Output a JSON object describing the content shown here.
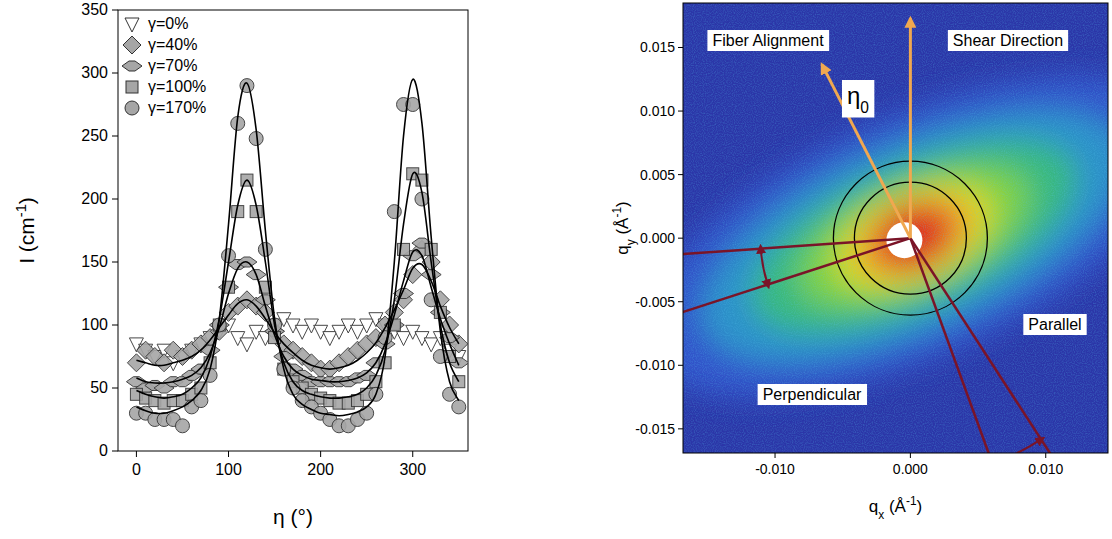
{
  "chart_data": [
    {
      "type": "scatter",
      "xlabel": [
        {
          "t": "η (°)"
        }
      ],
      "ylabel": [
        {
          "t": "I (cm"
        },
        {
          "t": "-1",
          "sup": true
        },
        {
          "t": ")"
        }
      ],
      "xlim": [
        -20,
        360
      ],
      "xticks": [
        0,
        100,
        200,
        300
      ],
      "ylim": [
        0,
        350
      ],
      "yticks": [
        0,
        50,
        100,
        150,
        200,
        250,
        300,
        350
      ],
      "legend": "top-left",
      "x": [
        0,
        10,
        20,
        30,
        40,
        50,
        60,
        70,
        80,
        90,
        100,
        110,
        120,
        130,
        140,
        150,
        160,
        170,
        180,
        190,
        200,
        210,
        220,
        230,
        240,
        250,
        260,
        270,
        280,
        290,
        300,
        310,
        320,
        330,
        340,
        350
      ],
      "series": [
        {
          "name": "γ=0%",
          "marker": "triangle-down",
          "color": "#ffffff",
          "values": [
            85,
            80,
            75,
            80,
            70,
            75,
            80,
            85,
            90,
            95,
            100,
            90,
            85,
            95,
            90,
            100,
            105,
            100,
            95,
            100,
            95,
            90,
            95,
            100,
            95,
            100,
            105,
            100,
            95,
            90,
            95,
            90,
            85,
            90,
            80,
            75
          ]
        },
        {
          "name": "γ=40%",
          "marker": "diamond",
          "color": "#a6a6a6",
          "values": [
            70,
            80,
            75,
            70,
            80,
            75,
            80,
            85,
            90,
            95,
            110,
            115,
            120,
            115,
            110,
            95,
            85,
            80,
            75,
            70,
            65,
            65,
            70,
            75,
            80,
            85,
            90,
            100,
            110,
            120,
            140,
            160,
            150,
            120,
            100,
            85
          ],
          "fit_values": [
            72,
            70,
            68,
            68,
            70,
            72,
            75,
            80,
            88,
            98,
            108,
            117,
            120,
            115,
            105,
            94,
            85,
            78,
            72,
            68,
            66,
            65,
            66,
            68,
            72,
            78,
            86,
            98,
            112,
            128,
            145,
            148,
            135,
            115,
            98,
            85
          ]
        },
        {
          "name": "γ=70%",
          "marker": "diamond-wide",
          "color": "#a6a6a6",
          "values": [
            55,
            50,
            52,
            50,
            55,
            55,
            60,
            65,
            80,
            100,
            130,
            148,
            150,
            140,
            120,
            95,
            75,
            65,
            60,
            55,
            55,
            55,
            55,
            55,
            58,
            60,
            70,
            85,
            100,
            125,
            155,
            165,
            140,
            110,
            90,
            70
          ],
          "fit_values": [
            58,
            55,
            54,
            54,
            55,
            57,
            60,
            66,
            78,
            98,
            125,
            145,
            150,
            140,
            115,
            92,
            75,
            65,
            60,
            57,
            56,
            55,
            55,
            56,
            58,
            62,
            70,
            85,
            108,
            135,
            158,
            155,
            130,
            105,
            85,
            68
          ]
        },
        {
          "name": "γ=100%",
          "marker": "square",
          "color": "#a6a6a6",
          "values": [
            45,
            42,
            40,
            38,
            40,
            40,
            45,
            50,
            70,
            100,
            130,
            190,
            215,
            190,
            130,
            90,
            65,
            55,
            50,
            45,
            42,
            40,
            38,
            38,
            40,
            45,
            55,
            70,
            100,
            160,
            220,
            215,
            160,
            110,
            75,
            55
          ],
          "fit_values": [
            48,
            45,
            43,
            42,
            43,
            45,
            50,
            58,
            75,
            105,
            150,
            195,
            215,
            195,
            150,
            100,
            70,
            55,
            48,
            45,
            43,
            42,
            42,
            43,
            45,
            50,
            60,
            80,
            120,
            180,
            220,
            205,
            150,
            100,
            70,
            55
          ]
        },
        {
          "name": "γ=170%",
          "marker": "circle",
          "color": "#a6a6a6",
          "values": [
            30,
            30,
            25,
            25,
            25,
            20,
            35,
            40,
            60,
            100,
            155,
            260,
            290,
            248,
            160,
            100,
            65,
            50,
            40,
            35,
            30,
            25,
            20,
            20,
            25,
            30,
            45,
            90,
            190,
            275,
            275,
            200,
            120,
            75,
            45,
            35
          ],
          "fit_values": [
            35,
            32,
            30,
            30,
            32,
            35,
            40,
            48,
            65,
            105,
            180,
            265,
            292,
            255,
            175,
            105,
            65,
            45,
            37,
            33,
            30,
            29,
            28,
            29,
            31,
            35,
            45,
            75,
            150,
            250,
            295,
            260,
            170,
            95,
            55,
            40
          ]
        }
      ]
    },
    {
      "type": "image",
      "xlabel": [
        {
          "t": "q"
        },
        {
          "t": "x",
          "sub": true
        },
        {
          "t": " (Å"
        },
        {
          "t": "-1",
          "sup": true
        },
        {
          "t": ")"
        }
      ],
      "ylabel": [
        {
          "t": "q"
        },
        {
          "t": "y",
          "sub": true
        },
        {
          "t": " (Å"
        },
        {
          "t": "-1",
          "sup": true
        },
        {
          "t": ")"
        }
      ],
      "xlim": [
        -0.0168,
        0.0146
      ],
      "xticks": [
        {
          "value": -0.01,
          "label": "-0.010"
        },
        {
          "value": 0,
          "label": "0.000"
        },
        {
          "value": 0.01,
          "label": "0.010"
        }
      ],
      "ylim": [
        -0.0169,
        0.0185
      ],
      "yticks": [
        {
          "value": -0.015,
          "label": "-0.015"
        },
        {
          "value": -0.01,
          "label": "-0.010"
        },
        {
          "value": -0.005,
          "label": "-0.005"
        },
        {
          "value": 0,
          "label": "0.000"
        },
        {
          "value": 0.005,
          "label": "0.005"
        },
        {
          "value": 0.01,
          "label": "0.010"
        },
        {
          "value": 0.015,
          "label": "0.015"
        }
      ],
      "annotations": [
        {
          "text": "Fiber Alignment"
        },
        {
          "text": "Shear Direction"
        },
        {
          "text": "η",
          "subscript": "0"
        },
        {
          "text": "Perpendicular"
        },
        {
          "text": "Parallel"
        }
      ]
    }
  ]
}
